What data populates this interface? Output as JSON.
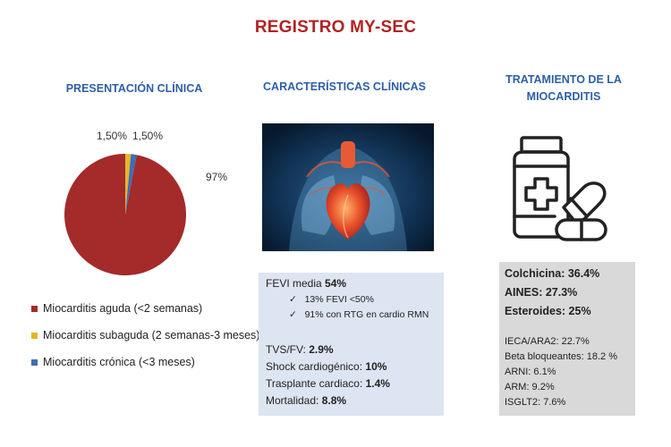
{
  "title": "REGISTRO MY-SEC",
  "sections": {
    "presentation": {
      "title": "PRESENTACIÓN CLÍNICA"
    },
    "characteristics": {
      "title": "CARACTERÍSTICAS CLÍNICAS"
    },
    "treatment": {
      "title_line1": "TRATAMIENTO DE LA",
      "title_line2": "MIOCARDITIS"
    }
  },
  "chart_data": {
    "type": "pie",
    "categories": [
      "Miocarditis aguda (<2 semanas)",
      "Miocarditis subaguda (2 semanas-3 meses)",
      "Miocarditis crónica (<3 meses)"
    ],
    "values": [
      97,
      1.5,
      1.5
    ],
    "data_labels": [
      "97%",
      "1,50%",
      "1,50%"
    ],
    "colors": [
      "#a52a2a",
      "#e3b62b",
      "#3f6db3"
    ],
    "legend_position": "bottom"
  },
  "clinical": {
    "fevi_label": "FEVI media ",
    "fevi_value": "54%",
    "bullet1": "13% FEVI <50%",
    "bullet2": "91% con RTG en cardio RMN",
    "tvs_label": "TVS/FV: ",
    "tvs_value": "2.9%",
    "shock_label": "Shock cardiogénico: ",
    "shock_value": "10%",
    "trasplante_label": "Trasplante  cardiaco: ",
    "trasplante_value": "1.4%",
    "mortalidad_label": "Mortalidad: ",
    "mortalidad_value": "8.8%",
    "check_glyph": "✓"
  },
  "treatment": {
    "colchicina": "Colchicina: 36.4%",
    "aines": "AINES: 27.3%",
    "esteroides": "Esteroides: 25%",
    "ieca": "IECA/ARA2: 22.7%",
    "beta": "Beta bloqueantes: 18.2 %",
    "arni": "ARNI: 6.1%",
    "arm": "ARM: 9.2%",
    "isglt2": "ISGLT2: 7.6%"
  },
  "icons": {
    "heart": "heart-anatomy-icon",
    "medicine": "medicine-bottle-icon"
  }
}
